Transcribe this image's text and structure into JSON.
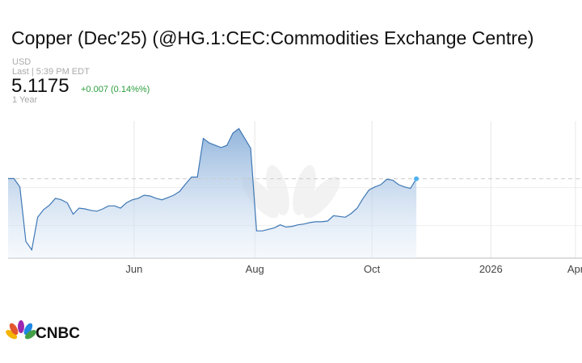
{
  "chart_data": {
    "type": "area",
    "title": "Copper (Dec'25) (@HG.1:CEC:Commodities Exchange Centre)",
    "currency": "USD",
    "last_time": "Last | 5:39 PM EDT",
    "last_price": 5.1175,
    "change": "+0.007 (0.14%%)",
    "period": "1 Year",
    "logo": "CNBC",
    "color": "#3f78b5",
    "values": [
      5.12,
      5.12,
      5.01,
      4.29,
      4.18,
      4.61,
      4.71,
      4.77,
      4.86,
      4.84,
      4.8,
      4.65,
      4.73,
      4.72,
      4.7,
      4.69,
      4.72,
      4.76,
      4.76,
      4.73,
      4.8,
      4.84,
      4.86,
      4.9,
      4.89,
      4.86,
      4.84,
      4.87,
      4.9,
      4.95,
      5.05,
      5.14,
      5.14,
      5.65,
      5.59,
      5.56,
      5.53,
      5.56,
      5.72,
      5.78,
      5.65,
      5.52,
      4.43,
      4.43,
      4.45,
      4.47,
      4.51,
      4.48,
      4.49,
      4.51,
      4.52,
      4.54,
      4.55,
      4.55,
      4.56,
      4.63,
      4.62,
      4.61,
      4.66,
      4.73,
      4.86,
      4.97,
      5.01,
      5.04,
      5.11,
      5.1,
      5.04,
      5.01,
      4.99,
      5.1175
    ],
    "xlim": [
      0,
      97
    ],
    "xticks": [
      {
        "value": 21.3,
        "label": "Jun"
      },
      {
        "value": 41.7,
        "label": "Aug"
      },
      {
        "value": 61.5,
        "label": "Oct"
      },
      {
        "value": 81.6,
        "label": "2026"
      },
      {
        "value": 95.9,
        "label": "Apr"
      }
    ],
    "ylim": [
      4.07,
      5.88
    ],
    "yticks": [
      4.5,
      5.0
    ],
    "grid": true
  }
}
